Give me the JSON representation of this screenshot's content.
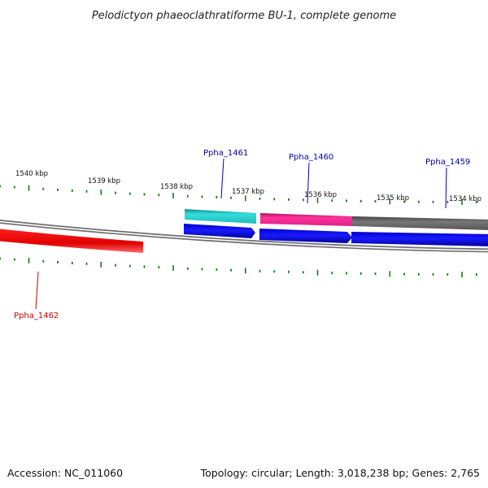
{
  "title": "Pelodictyon phaeoclathratiforme BU-1, complete genome",
  "footer": {
    "accession": "Accession: NC_011060",
    "summary": "Topology: circular; Length: 3,018,238 bp; Genes: 2,765"
  },
  "scale": {
    "tick_labels": [
      "1540 kbp",
      "1539 kbp",
      "1538 kbp",
      "1537 kbp",
      "1536 kbp",
      "1535 kbp",
      "1534 kbp"
    ]
  },
  "genes": [
    {
      "name": "Ppha_1461",
      "color": "#0000aa"
    },
    {
      "name": "Ppha_1460",
      "color": "#0000aa"
    },
    {
      "name": "Ppha_1459",
      "color": "#0000aa"
    },
    {
      "name": "Ppha_1462",
      "color": "#cc0000"
    }
  ],
  "colors": {
    "backbone": "#7a7a7a",
    "cds_forward": "#0000ee",
    "cds_reverse": "#ee0000",
    "feature_cyan": "#22cccc",
    "feature_magenta": "#ee2288",
    "feature_gray": "#666666",
    "tick": "#1a7a1a"
  }
}
